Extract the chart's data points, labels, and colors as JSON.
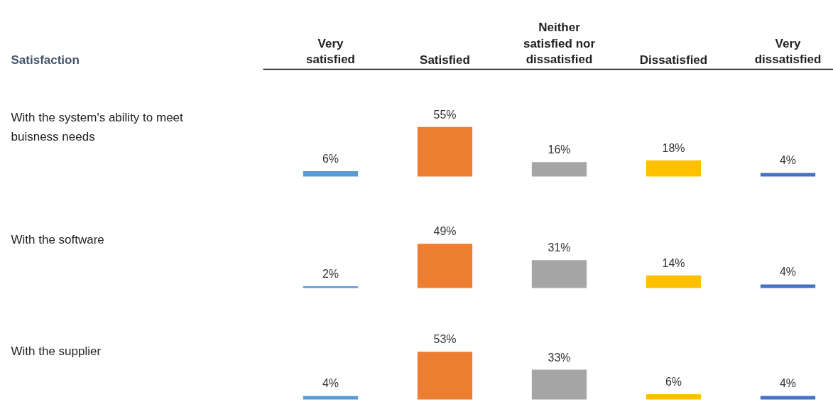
{
  "chart_data": [
    {
      "type": "bar",
      "ylabel": "With the system's ability to meet buisness needs",
      "annotations": [
        "Satisfaction"
      ],
      "categories": [
        "Very satisfied",
        "Satisfied",
        "Neither satisfied nor dissatisfied",
        "Dissatisfied",
        "Very dissatisfied"
      ],
      "values": [
        6,
        55,
        16,
        18,
        4
      ],
      "colors": [
        "#5b9bd5",
        "#ed7d31",
        "#a5a5a5",
        "#ffc000",
        "#4472c4"
      ],
      "value_labels": [
        "6%",
        "55%",
        "16%",
        "18%",
        "4%"
      ],
      "tick_labels": "x"
    },
    {
      "type": "bar",
      "ylabel": "With the software",
      "categories": [
        "Very satisfied",
        "Satisfied",
        "Neither satisfied nor dissatisfied",
        "Dissatisfied",
        "Very dissatisfied"
      ],
      "values": [
        2,
        49,
        31,
        14,
        4
      ],
      "colors": [
        "#5b9bd5",
        "#ed7d31",
        "#a5a5a5",
        "#ffc000",
        "#4472c4"
      ],
      "value_labels": [
        "2%",
        "49%",
        "31%",
        "14%",
        "4%"
      ],
      "tick_labels": false
    },
    {
      "type": "bar",
      "ylabel": "With the supplier",
      "categories": [
        "Very satisfied",
        "Satisfied",
        "Neither satisfied nor dissatisfied",
        "Dissatisfied",
        "Very dissatisfied"
      ],
      "values": [
        4,
        53,
        33,
        6,
        4
      ],
      "colors": [
        "#5b9bd5",
        "#ed7d31",
        "#a5a5a5",
        "#ffc000",
        "#4472c4"
      ],
      "value_labels": [
        "4%",
        "53%",
        "33%",
        "6%",
        "4%"
      ],
      "tick_labels": false
    }
  ]
}
